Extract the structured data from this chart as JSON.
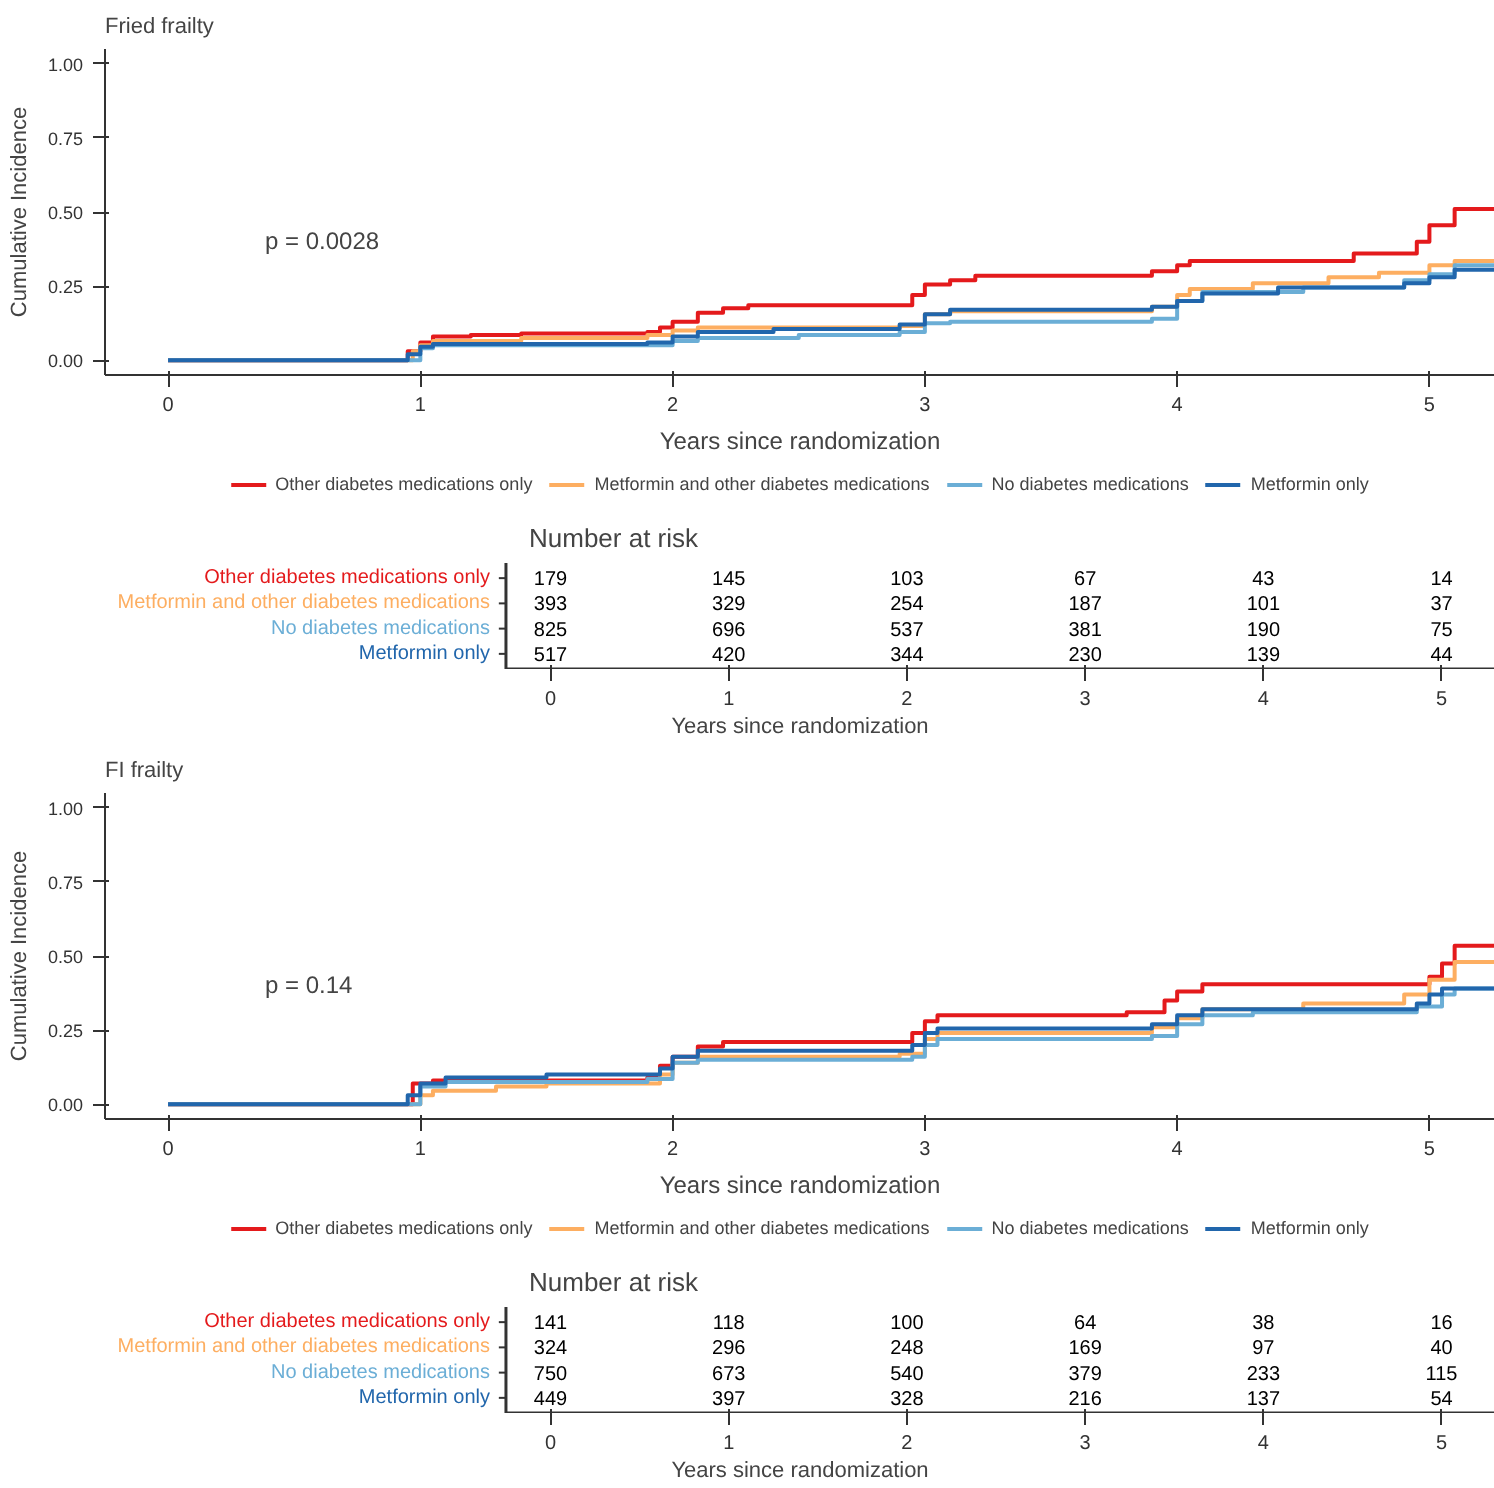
{
  "chart_data": [
    {
      "type": "step",
      "title": "Fried frailty",
      "xlabel": "Years since randomization",
      "ylabel": "Cumulative Incidence",
      "xlim": [
        -0.25,
        5.26
      ],
      "ylim": [
        -0.05,
        1.05
      ],
      "xticks": [
        0,
        1,
        2,
        3,
        4,
        5
      ],
      "yticks": [
        {
          "value": 0,
          "label": "0.00"
        },
        {
          "value": 0.25,
          "label": "0.25"
        },
        {
          "value": 0.5,
          "label": "0.50"
        },
        {
          "value": 0.75,
          "label": "0.75"
        },
        {
          "value": 1,
          "label": "1.00"
        }
      ],
      "grid": false,
      "legend": "bottom",
      "annotations": [
        "p = 0.0028"
      ],
      "series": [
        {
          "name": "Other diabetes medications only",
          "color": "#e41a1c",
          "x": [
            0,
            0.93,
            0.95,
            1.0,
            1.05,
            1.2,
            1.4,
            1.9,
            1.95,
            2.0,
            2.1,
            2.2,
            2.3,
            2.95,
            3.0,
            3.1,
            3.2,
            3.9,
            4.0,
            4.05,
            4.7,
            4.95,
            5.0,
            5.1,
            5.26
          ],
          "values": [
            0,
            0,
            0.03,
            0.06,
            0.08,
            0.085,
            0.09,
            0.095,
            0.11,
            0.13,
            0.16,
            0.175,
            0.185,
            0.22,
            0.255,
            0.27,
            0.285,
            0.3,
            0.32,
            0.335,
            0.36,
            0.4,
            0.455,
            0.51,
            0.51
          ]
        },
        {
          "name": "Metformin and other diabetes medications",
          "color": "#fdae61",
          "x": [
            0,
            0.9,
            0.97,
            1.0,
            1.05,
            1.4,
            1.9,
            2.0,
            2.1,
            2.9,
            3.0,
            3.1,
            3.9,
            4.0,
            4.05,
            4.3,
            4.6,
            4.8,
            5.0,
            5.1,
            5.26
          ],
          "values": [
            0,
            0,
            0.03,
            0.05,
            0.065,
            0.075,
            0.085,
            0.1,
            0.11,
            0.115,
            0.155,
            0.165,
            0.18,
            0.22,
            0.24,
            0.26,
            0.28,
            0.295,
            0.32,
            0.335,
            0.335
          ]
        },
        {
          "name": "No diabetes medications",
          "color": "#6baed6",
          "x": [
            0,
            0.95,
            1.0,
            1.05,
            2.0,
            2.1,
            2.5,
            2.9,
            3.0,
            3.1,
            3.9,
            4.0,
            4.1,
            4.5,
            4.9,
            5.0,
            5.1,
            5.26
          ],
          "values": [
            0,
            0,
            0.04,
            0.05,
            0.065,
            0.075,
            0.085,
            0.095,
            0.125,
            0.13,
            0.14,
            0.2,
            0.23,
            0.245,
            0.27,
            0.29,
            0.32,
            0.32
          ]
        },
        {
          "name": "Metformin only",
          "color": "#2166ac",
          "x": [
            0,
            0.85,
            0.95,
            1.0,
            1.05,
            1.9,
            2.0,
            2.1,
            2.4,
            2.9,
            3.0,
            3.1,
            3.9,
            4.0,
            4.1,
            4.4,
            4.9,
            5.0,
            5.1,
            5.26
          ],
          "values": [
            0,
            0,
            0.02,
            0.045,
            0.055,
            0.06,
            0.08,
            0.095,
            0.105,
            0.12,
            0.155,
            0.17,
            0.18,
            0.2,
            0.225,
            0.245,
            0.26,
            0.28,
            0.305,
            0.305
          ]
        }
      ]
    },
    {
      "type": "heatmap",
      "title": "Number at risk",
      "xlabel": "Years since randomization",
      "categories": [
        "0",
        "1",
        "2",
        "3",
        "4",
        "5"
      ],
      "y_categories": [
        "Other diabetes medications only",
        "Metformin and other diabetes medications",
        "No diabetes medications",
        "Metformin only"
      ],
      "colors": [
        "#e41a1c",
        "#fdae61",
        "#6baed6",
        "#2166ac"
      ],
      "data_labels": true,
      "cells": [
        [
          179,
          145,
          103,
          67,
          43,
          14
        ],
        [
          393,
          329,
          254,
          187,
          101,
          37
        ],
        [
          825,
          696,
          537,
          381,
          190,
          75
        ],
        [
          517,
          420,
          344,
          230,
          139,
          44
        ]
      ]
    },
    {
      "type": "step",
      "title": "FI frailty",
      "xlabel": "Years since randomization",
      "ylabel": "Cumulative Incidence",
      "xlim": [
        -0.25,
        5.26
      ],
      "ylim": [
        -0.05,
        1.05
      ],
      "xticks": [
        0,
        1,
        2,
        3,
        4,
        5
      ],
      "yticks": [
        {
          "value": 0,
          "label": "0.00"
        },
        {
          "value": 0.25,
          "label": "0.25"
        },
        {
          "value": 0.5,
          "label": "0.50"
        },
        {
          "value": 0.75,
          "label": "0.75"
        },
        {
          "value": 1,
          "label": "1.00"
        }
      ],
      "grid": false,
      "legend": "bottom",
      "annotations": [
        "p = 0.14"
      ],
      "series": [
        {
          "name": "Other diabetes medications only",
          "color": "#e41a1c",
          "x": [
            0,
            0.95,
            0.97,
            1.05,
            1.9,
            1.95,
            2.0,
            2.1,
            2.2,
            2.95,
            3.0,
            3.05,
            3.8,
            3.95,
            4.0,
            4.1,
            5.0,
            5.05,
            5.1,
            5.26
          ],
          "values": [
            0,
            0,
            0.07,
            0.08,
            0.09,
            0.13,
            0.16,
            0.195,
            0.21,
            0.24,
            0.28,
            0.3,
            0.31,
            0.35,
            0.38,
            0.405,
            0.43,
            0.475,
            0.535,
            0.535
          ]
        },
        {
          "name": "Metformin and other diabetes medications",
          "color": "#fdae61",
          "x": [
            0,
            0.95,
            1.0,
            1.05,
            1.3,
            1.5,
            1.95,
            2.0,
            2.1,
            2.9,
            3.0,
            3.05,
            3.9,
            4.0,
            4.1,
            4.5,
            4.9,
            5.0,
            5.1,
            5.26
          ],
          "values": [
            0,
            0,
            0.03,
            0.045,
            0.06,
            0.07,
            0.1,
            0.14,
            0.16,
            0.17,
            0.22,
            0.24,
            0.26,
            0.29,
            0.32,
            0.34,
            0.37,
            0.42,
            0.48,
            0.48
          ]
        },
        {
          "name": "No diabetes medications",
          "color": "#6baed6",
          "x": [
            0,
            0.9,
            1.0,
            1.1,
            1.9,
            2.0,
            2.1,
            2.95,
            3.0,
            3.05,
            3.9,
            4.0,
            4.1,
            4.3,
            4.95,
            5.05,
            5.1,
            5.26
          ],
          "values": [
            0,
            0,
            0.06,
            0.075,
            0.085,
            0.14,
            0.15,
            0.16,
            0.2,
            0.22,
            0.23,
            0.27,
            0.3,
            0.31,
            0.33,
            0.37,
            0.39,
            0.39
          ]
        },
        {
          "name": "Metformin only",
          "color": "#2166ac",
          "x": [
            0,
            0.85,
            0.95,
            1.0,
            1.1,
            1.5,
            1.95,
            2.0,
            2.1,
            2.95,
            3.0,
            3.05,
            3.9,
            4.0,
            4.1,
            4.95,
            5.0,
            5.05,
            5.26
          ],
          "values": [
            0,
            0,
            0.03,
            0.07,
            0.09,
            0.1,
            0.12,
            0.16,
            0.18,
            0.2,
            0.24,
            0.255,
            0.27,
            0.3,
            0.32,
            0.34,
            0.37,
            0.39,
            0.39
          ]
        }
      ]
    },
    {
      "type": "heatmap",
      "title": "Number at risk",
      "xlabel": "Years since randomization",
      "categories": [
        "0",
        "1",
        "2",
        "3",
        "4",
        "5"
      ],
      "y_categories": [
        "Other diabetes medications only",
        "Metformin and other diabetes medications",
        "No diabetes medications",
        "Metformin only"
      ],
      "colors": [
        "#e41a1c",
        "#fdae61",
        "#6baed6",
        "#2166ac"
      ],
      "data_labels": true,
      "cells": [
        [
          141,
          118,
          100,
          64,
          38,
          16
        ],
        [
          324,
          296,
          248,
          169,
          97,
          40
        ],
        [
          750,
          673,
          540,
          379,
          233,
          115
        ],
        [
          449,
          397,
          328,
          216,
          137,
          54
        ]
      ]
    }
  ]
}
